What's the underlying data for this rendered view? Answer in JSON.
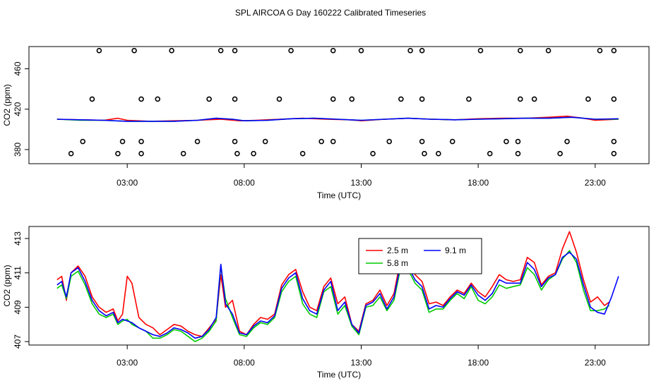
{
  "title": "SPL AIRCOA G  Day 160222  Calibrated Timeseries",
  "chart_data": [
    {
      "type": "line",
      "xlabel": "Time (UTC)",
      "ylabel": "CO2 (ppm)",
      "x_ticks": [
        "03:00",
        "08:00",
        "13:00",
        "18:00",
        "23:00"
      ],
      "x_tick_hours": [
        3,
        8,
        13,
        18,
        23
      ],
      "y_ticks": [
        380,
        420,
        460
      ],
      "x_range_hours": [
        -1.2,
        25.3
      ],
      "ylim": [
        366,
        482
      ],
      "grid": false,
      "series": [
        {
          "color": "#ff0000",
          "x": [
            0,
            1,
            2,
            2.6,
            3,
            4,
            5,
            6,
            7,
            7.8,
            8.5,
            9.5,
            10.5,
            11.5,
            12.5,
            13,
            14,
            15,
            16,
            17,
            18,
            19,
            20,
            21,
            21.8,
            22.5,
            23,
            24
          ],
          "y": [
            410,
            409.5,
            409,
            411,
            409,
            408,
            408.5,
            409,
            410,
            408.5,
            409,
            410,
            411,
            410,
            409.5,
            408.5,
            410,
            411,
            410,
            409.5,
            410.5,
            411,
            411,
            412,
            413,
            411,
            409,
            410
          ]
        },
        {
          "color": "#00cc00",
          "x": [
            0,
            1,
            2,
            3,
            4,
            5,
            6,
            6.8,
            7.5,
            8,
            9,
            10,
            11,
            12,
            13,
            14,
            15,
            16,
            17,
            18,
            19,
            20,
            21,
            22,
            23,
            24
          ],
          "y": [
            410,
            409,
            409,
            408,
            408,
            408,
            409,
            411,
            410,
            408.5,
            409,
            410.5,
            411,
            410,
            409,
            410,
            411,
            410,
            409.5,
            410,
            410.5,
            411,
            411,
            412,
            410,
            410
          ]
        },
        {
          "color": "#0000ff",
          "x": [
            0,
            1,
            2,
            3,
            4,
            5,
            6,
            6.8,
            7.5,
            8,
            9,
            10,
            11,
            12,
            13,
            14,
            15,
            16,
            17,
            18,
            19,
            20,
            21,
            22,
            23,
            24
          ],
          "y": [
            410,
            409.5,
            409,
            408,
            408,
            408,
            409,
            411,
            410,
            408.5,
            409,
            410.5,
            411,
            410,
            409,
            410,
            411,
            410,
            409.5,
            410,
            410.5,
            411,
            411,
            412,
            410,
            410.5
          ]
        }
      ],
      "markers": {
        "style": "open-circle",
        "x": [
          1.8,
          3.3,
          4.9,
          7.0,
          7.6,
          10.0,
          11.8,
          13.0,
          15.1,
          15.6,
          18.1,
          19.8,
          21.0,
          23.2,
          23.8,
          1.5,
          3.6,
          4.3,
          6.5,
          7.6,
          9.5,
          11.8,
          12.6,
          14.7,
          15.6,
          17.6,
          19.8,
          20.4,
          22.7,
          23.8,
          1.1,
          2.8,
          3.6,
          6.0,
          7.6,
          8.9,
          11.3,
          11.8,
          14.2,
          15.6,
          16.9,
          19.2,
          19.7,
          21.8,
          23.8,
          0.6,
          2.6,
          3.6,
          5.4,
          7.7,
          8.4,
          10.5,
          13.5,
          15.7,
          16.3,
          18.5,
          19.7,
          21.5,
          23.8
        ],
        "y": [
          478,
          478,
          478,
          478,
          478,
          478,
          478,
          478,
          478,
          478,
          478,
          478,
          478,
          478,
          478,
          430,
          430,
          430,
          430,
          430,
          430,
          430,
          430,
          430,
          430,
          430,
          430,
          430,
          430,
          430,
          388,
          388,
          388,
          388,
          388,
          388,
          388,
          388,
          388,
          388,
          388,
          388,
          388,
          388,
          388,
          376,
          376,
          376,
          376,
          376,
          376,
          376,
          376,
          376,
          376,
          376,
          376,
          376,
          376
        ]
      }
    },
    {
      "type": "line",
      "xlabel": "Time (UTC)",
      "ylabel": "CO2 (ppm)",
      "x_ticks": [
        "03:00",
        "08:00",
        "13:00",
        "18:00",
        "23:00"
      ],
      "x_tick_hours": [
        3,
        8,
        13,
        18,
        23
      ],
      "y_ticks": [
        407,
        409,
        411,
        413
      ],
      "x_range_hours": [
        -1.2,
        25.3
      ],
      "ylim": [
        406.8,
        413.7
      ],
      "grid": false,
      "legend_position": "top-center",
      "series": [
        {
          "name": "2.5 m",
          "color": "#ff0000",
          "x": [
            0,
            0.2,
            0.4,
            0.6,
            0.9,
            1.2,
            1.5,
            1.8,
            2.1,
            2.4,
            2.6,
            2.8,
            3.0,
            3.2,
            3.5,
            3.8,
            4.1,
            4.4,
            4.7,
            5.0,
            5.3,
            5.6,
            5.9,
            6.2,
            6.5,
            6.8,
            7.0,
            7.2,
            7.5,
            7.8,
            8.1,
            8.4,
            8.7,
            9.0,
            9.3,
            9.6,
            9.9,
            10.2,
            10.5,
            10.8,
            11.1,
            11.4,
            11.7,
            12.0,
            12.3,
            12.6,
            12.9,
            13.2,
            13.5,
            13.8,
            14.1,
            14.4,
            14.7,
            15.0,
            15.3,
            15.6,
            15.9,
            16.2,
            16.5,
            16.8,
            17.1,
            17.4,
            17.7,
            18.0,
            18.3,
            18.6,
            18.9,
            19.2,
            19.5,
            19.8,
            20.1,
            20.4,
            20.7,
            21.0,
            21.3,
            21.6,
            21.9,
            22.2,
            22.5,
            22.8,
            23.1,
            23.4,
            23.6
          ],
          "y": [
            410.6,
            410.8,
            409.4,
            411.0,
            411.4,
            410.8,
            409.6,
            409.0,
            408.7,
            408.9,
            408.2,
            408.6,
            410.8,
            410.4,
            408.4,
            408.0,
            407.8,
            407.4,
            407.7,
            408.0,
            407.9,
            407.6,
            407.4,
            407.3,
            407.8,
            408.3,
            410.9,
            409.0,
            409.4,
            407.6,
            407.4,
            408.0,
            408.4,
            408.3,
            408.6,
            410.3,
            410.9,
            411.2,
            409.9,
            409.0,
            408.8,
            410.2,
            410.7,
            409.2,
            409.6,
            408.0,
            407.6,
            409.2,
            409.4,
            410.0,
            409.1,
            409.8,
            411.9,
            411.6,
            410.9,
            410.5,
            409.2,
            409.3,
            409.1,
            409.6,
            410.0,
            409.8,
            410.4,
            409.9,
            409.6,
            410.2,
            410.9,
            410.6,
            410.5,
            410.6,
            411.9,
            411.6,
            410.3,
            410.8,
            411.0,
            412.4,
            413.4,
            412.2,
            410.6,
            409.3,
            409.6,
            409.1,
            409.3
          ]
        },
        {
          "name": "5.8 m",
          "color": "#00cc00",
          "x": [
            0,
            0.2,
            0.4,
            0.6,
            0.9,
            1.2,
            1.5,
            1.8,
            2.1,
            2.4,
            2.6,
            2.8,
            3.0,
            3.2,
            3.5,
            3.8,
            4.1,
            4.4,
            4.7,
            5.0,
            5.3,
            5.6,
            5.9,
            6.2,
            6.5,
            6.8,
            7.0,
            7.2,
            7.5,
            7.8,
            8.1,
            8.4,
            8.7,
            9.0,
            9.3,
            9.6,
            9.9,
            10.2,
            10.5,
            10.8,
            11.1,
            11.4,
            11.7,
            12.0,
            12.3,
            12.6,
            12.9,
            13.2,
            13.5,
            13.8,
            14.1,
            14.4,
            14.7,
            15.0,
            15.3,
            15.6,
            15.9,
            16.2,
            16.5,
            16.8,
            17.1,
            17.4,
            17.7,
            18.0,
            18.3,
            18.6,
            18.9,
            19.2,
            19.5,
            19.8,
            20.1,
            20.4,
            20.7,
            21.0,
            21.3,
            21.6,
            21.9,
            22.2,
            22.5,
            22.8,
            23.1,
            23.4,
            23.6
          ],
          "y": [
            410.1,
            410.3,
            409.5,
            410.8,
            411.1,
            410.3,
            409.2,
            408.6,
            408.4,
            408.6,
            408.0,
            408.2,
            408.3,
            408.0,
            407.8,
            407.6,
            407.2,
            407.2,
            407.4,
            407.7,
            407.6,
            407.3,
            407.0,
            407.2,
            407.6,
            408.2,
            411.4,
            409.5,
            408.4,
            407.4,
            407.3,
            407.8,
            408.1,
            408.0,
            408.4,
            409.9,
            410.5,
            410.8,
            409.2,
            408.6,
            408.4,
            409.9,
            410.2,
            408.6,
            409.1,
            407.9,
            407.4,
            409.0,
            409.1,
            409.6,
            408.8,
            409.4,
            411.4,
            411.2,
            410.4,
            410.0,
            408.7,
            408.9,
            408.9,
            409.4,
            409.8,
            409.5,
            410.2,
            409.4,
            409.2,
            409.6,
            410.3,
            410.1,
            410.2,
            410.3,
            411.3,
            410.9,
            410.0,
            410.6,
            410.9,
            411.8,
            412.3,
            411.6,
            410.0,
            408.8,
            408.8,
            408.9,
            409.1
          ]
        },
        {
          "name": "9.1 m",
          "color": "#0000ff",
          "x": [
            0,
            0.2,
            0.4,
            0.6,
            0.9,
            1.2,
            1.5,
            1.8,
            2.1,
            2.4,
            2.6,
            2.8,
            3.0,
            3.2,
            3.5,
            3.8,
            4.1,
            4.4,
            4.7,
            5.0,
            5.3,
            5.6,
            5.9,
            6.2,
            6.5,
            6.8,
            7.0,
            7.2,
            7.5,
            7.8,
            8.1,
            8.4,
            8.7,
            9.0,
            9.3,
            9.6,
            9.9,
            10.2,
            10.5,
            10.8,
            11.1,
            11.4,
            11.7,
            12.0,
            12.3,
            12.6,
            12.9,
            13.2,
            13.5,
            13.8,
            14.1,
            14.4,
            14.7,
            15.0,
            15.3,
            15.6,
            15.9,
            16.2,
            16.5,
            16.8,
            17.1,
            17.4,
            17.7,
            18.0,
            18.3,
            18.6,
            18.9,
            19.2,
            19.5,
            19.8,
            20.1,
            20.4,
            20.7,
            21.0,
            21.3,
            21.6,
            21.9,
            22.2,
            22.5,
            22.8,
            23.1,
            23.4,
            23.7,
            24.0
          ],
          "y": [
            410.3,
            410.5,
            409.6,
            411.0,
            411.3,
            410.5,
            409.4,
            408.8,
            408.5,
            408.7,
            408.1,
            408.3,
            408.2,
            408.1,
            407.8,
            407.6,
            407.4,
            407.3,
            407.5,
            407.8,
            407.7,
            407.5,
            407.2,
            407.3,
            407.7,
            408.4,
            411.5,
            409.2,
            408.6,
            407.5,
            407.4,
            407.9,
            408.2,
            408.1,
            408.5,
            410.1,
            410.7,
            411.0,
            409.5,
            408.8,
            408.6,
            410.0,
            410.5,
            408.8,
            409.3,
            408.0,
            407.5,
            409.1,
            409.3,
            409.8,
            408.9,
            409.6,
            411.6,
            411.4,
            410.6,
            410.2,
            408.9,
            409.1,
            409.0,
            409.5,
            409.9,
            409.7,
            410.3,
            409.7,
            409.4,
            409.8,
            410.6,
            410.4,
            410.4,
            410.4,
            411.6,
            411.2,
            410.2,
            410.7,
            410.9,
            411.9,
            412.2,
            411.8,
            410.3,
            409.0,
            408.7,
            408.6,
            409.6,
            410.8
          ]
        }
      ]
    }
  ]
}
